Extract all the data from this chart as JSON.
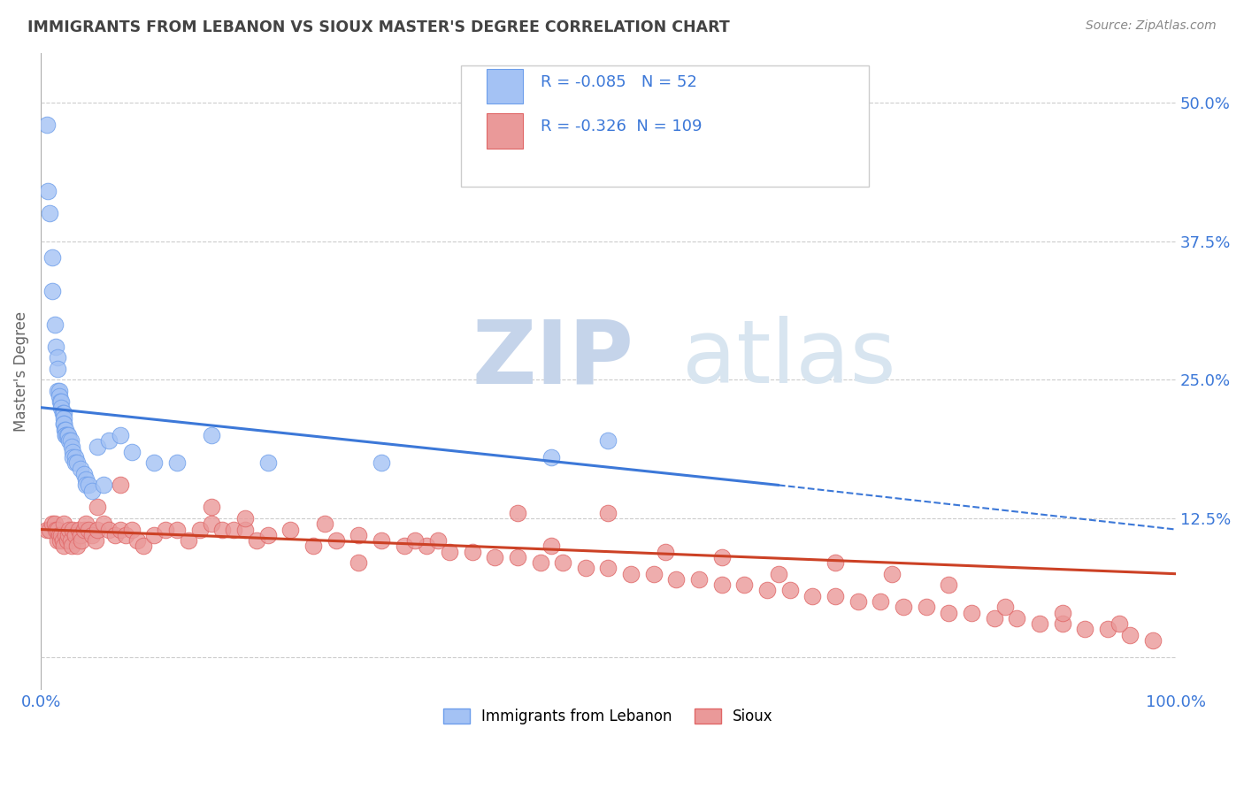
{
  "title": "IMMIGRANTS FROM LEBANON VS SIOUX MASTER'S DEGREE CORRELATION CHART",
  "source_text": "Source: ZipAtlas.com",
  "ylabel": "Master's Degree",
  "ytick_values": [
    0.5,
    0.375,
    0.25,
    0.125,
    0.0
  ],
  "ytick_labels": [
    "50.0%",
    "37.5%",
    "25.0%",
    "12.5%",
    ""
  ],
  "xlim": [
    0.0,
    1.0
  ],
  "ylim": [
    -0.03,
    0.545
  ],
  "legend_blue_label": "Immigrants from Lebanon",
  "legend_pink_label": "Sioux",
  "R_blue": -0.085,
  "N_blue": 52,
  "R_pink": -0.326,
  "N_pink": 109,
  "blue_color": "#a4c2f4",
  "pink_color": "#ea9999",
  "blue_edge_color": "#6d9eeb",
  "pink_edge_color": "#e06666",
  "blue_line_color": "#3c78d8",
  "pink_line_color": "#cc4125",
  "background_color": "#ffffff",
  "grid_color": "#cccccc",
  "title_color": "#434343",
  "axis_label_color": "#3c78d8",
  "watermark_color_zip": "#b0c4de",
  "watermark_color_atlas": "#c8d8e8",
  "blue_scatter_x": [
    0.005,
    0.006,
    0.008,
    0.01,
    0.01,
    0.012,
    0.013,
    0.015,
    0.015,
    0.015,
    0.016,
    0.016,
    0.017,
    0.018,
    0.018,
    0.019,
    0.02,
    0.02,
    0.02,
    0.02,
    0.021,
    0.022,
    0.022,
    0.022,
    0.023,
    0.024,
    0.025,
    0.026,
    0.027,
    0.028,
    0.028,
    0.03,
    0.03,
    0.032,
    0.035,
    0.038,
    0.04,
    0.04,
    0.042,
    0.045,
    0.05,
    0.055,
    0.06,
    0.07,
    0.08,
    0.1,
    0.12,
    0.15,
    0.2,
    0.3,
    0.45,
    0.5
  ],
  "blue_scatter_y": [
    0.48,
    0.42,
    0.4,
    0.36,
    0.33,
    0.3,
    0.28,
    0.27,
    0.26,
    0.24,
    0.24,
    0.235,
    0.23,
    0.23,
    0.225,
    0.22,
    0.22,
    0.215,
    0.21,
    0.21,
    0.205,
    0.205,
    0.2,
    0.2,
    0.2,
    0.2,
    0.195,
    0.195,
    0.19,
    0.185,
    0.18,
    0.18,
    0.175,
    0.175,
    0.17,
    0.165,
    0.16,
    0.155,
    0.155,
    0.15,
    0.19,
    0.155,
    0.195,
    0.2,
    0.185,
    0.175,
    0.175,
    0.2,
    0.175,
    0.175,
    0.18,
    0.195
  ],
  "pink_scatter_x": [
    0.005,
    0.008,
    0.01,
    0.012,
    0.013,
    0.015,
    0.015,
    0.016,
    0.017,
    0.018,
    0.019,
    0.02,
    0.02,
    0.022,
    0.023,
    0.024,
    0.025,
    0.026,
    0.027,
    0.028,
    0.03,
    0.032,
    0.033,
    0.035,
    0.036,
    0.038,
    0.04,
    0.042,
    0.045,
    0.048,
    0.05,
    0.055,
    0.06,
    0.065,
    0.07,
    0.075,
    0.08,
    0.085,
    0.09,
    0.1,
    0.11,
    0.12,
    0.13,
    0.14,
    0.15,
    0.16,
    0.17,
    0.18,
    0.19,
    0.2,
    0.22,
    0.24,
    0.26,
    0.28,
    0.3,
    0.32,
    0.34,
    0.36,
    0.38,
    0.4,
    0.42,
    0.44,
    0.46,
    0.48,
    0.5,
    0.52,
    0.54,
    0.56,
    0.58,
    0.6,
    0.62,
    0.64,
    0.66,
    0.68,
    0.7,
    0.72,
    0.74,
    0.76,
    0.78,
    0.8,
    0.82,
    0.84,
    0.86,
    0.88,
    0.9,
    0.92,
    0.94,
    0.96,
    0.98,
    0.35,
    0.45,
    0.55,
    0.65,
    0.75,
    0.85,
    0.95,
    0.25,
    0.15,
    0.07,
    0.05,
    0.42,
    0.6,
    0.8,
    0.33,
    0.18,
    0.28,
    0.5,
    0.7,
    0.9
  ],
  "pink_scatter_y": [
    0.115,
    0.115,
    0.12,
    0.12,
    0.115,
    0.115,
    0.105,
    0.11,
    0.105,
    0.11,
    0.105,
    0.12,
    0.1,
    0.11,
    0.105,
    0.11,
    0.115,
    0.105,
    0.1,
    0.115,
    0.11,
    0.1,
    0.115,
    0.11,
    0.105,
    0.115,
    0.12,
    0.115,
    0.11,
    0.105,
    0.115,
    0.12,
    0.115,
    0.11,
    0.115,
    0.11,
    0.115,
    0.105,
    0.1,
    0.11,
    0.115,
    0.115,
    0.105,
    0.115,
    0.12,
    0.115,
    0.115,
    0.115,
    0.105,
    0.11,
    0.115,
    0.1,
    0.105,
    0.11,
    0.105,
    0.1,
    0.1,
    0.095,
    0.095,
    0.09,
    0.09,
    0.085,
    0.085,
    0.08,
    0.08,
    0.075,
    0.075,
    0.07,
    0.07,
    0.065,
    0.065,
    0.06,
    0.06,
    0.055,
    0.055,
    0.05,
    0.05,
    0.045,
    0.045,
    0.04,
    0.04,
    0.035,
    0.035,
    0.03,
    0.03,
    0.025,
    0.025,
    0.02,
    0.015,
    0.105,
    0.1,
    0.095,
    0.075,
    0.075,
    0.045,
    0.03,
    0.12,
    0.135,
    0.155,
    0.135,
    0.13,
    0.09,
    0.065,
    0.105,
    0.125,
    0.085,
    0.13,
    0.085,
    0.04
  ]
}
